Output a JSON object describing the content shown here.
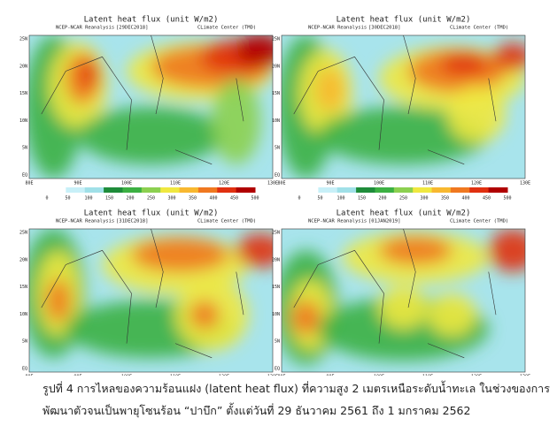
{
  "figure": {
    "title": "Latent heat flux (unit W/m2)",
    "source": "NCEP-NCAR Reanalysis",
    "center": "CLimate Center (TMD)",
    "lat_labels": [
      "25N",
      "20N",
      "15N",
      "10N",
      "5N",
      "EQ"
    ],
    "lon_labels": [
      "80E",
      "90E",
      "100E",
      "110E",
      "120E",
      "130E"
    ],
    "colorbar_ticks": [
      0,
      50,
      100,
      150,
      200,
      250,
      300,
      350,
      400,
      450,
      500
    ],
    "colorbar_colors": [
      "#ffffff",
      "#c8f0f8",
      "#a0e0e8",
      "#1e8c3a",
      "#3cb043",
      "#8cd050",
      "#f0e840",
      "#f8b830",
      "#f07820",
      "#e03010",
      "#b00000"
    ],
    "panels": [
      {
        "date": "[29DEC2018]"
      },
      {
        "date": "[30DEC2018]"
      },
      {
        "date": "[31DEC2018]"
      },
      {
        "date": "[01JAN2019]"
      }
    ]
  },
  "caption": {
    "line1": "รูปที่ 4 การไหลของความร้อนแฝง (latent heat flux) ที่ความสูง 2 เมตรเหนือระดับน้ำทะเล ในช่วงของการ",
    "line2": "พัฒนาตัวจนเป็นพายุโซนร้อน “ปาบึก” ตั้งแต่วันที่ 29 ธันวาคม 2561 ถึง 1 มกราคม 2562"
  }
}
